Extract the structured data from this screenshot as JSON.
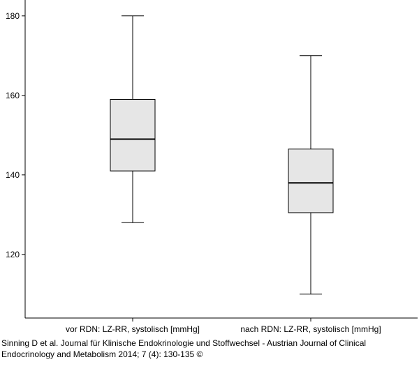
{
  "chart_data": {
    "type": "boxplot",
    "title": "",
    "xlabel": "",
    "ylabel": "",
    "ylim": [
      104,
      184
    ],
    "yticks": [
      120,
      140,
      160,
      180
    ],
    "grid": false,
    "categories": [
      "vor RDN: LZ-RR, systolisch [mmHg]",
      "nach RDN: LZ-RR, systolisch [mmHg]"
    ],
    "boxes": [
      {
        "category": "vor RDN: LZ-RR, systolisch [mmHg]",
        "min": 128,
        "q1": 141,
        "median": 149,
        "q3": 159,
        "max": 180
      },
      {
        "category": "nach RDN: LZ-RR, systolisch [mmHg]",
        "min": 110,
        "q1": 130.5,
        "median": 138,
        "q3": 146.5,
        "max": 170
      }
    ],
    "box_color": "#e6e6e6"
  },
  "caption": "Sinning D et al. Journal für Klinische Endokrinologie und Stoffwechsel - Austrian Journal of Clinical Endocrinology and Metabolism 2014; 7 (4): 130-135 ©"
}
